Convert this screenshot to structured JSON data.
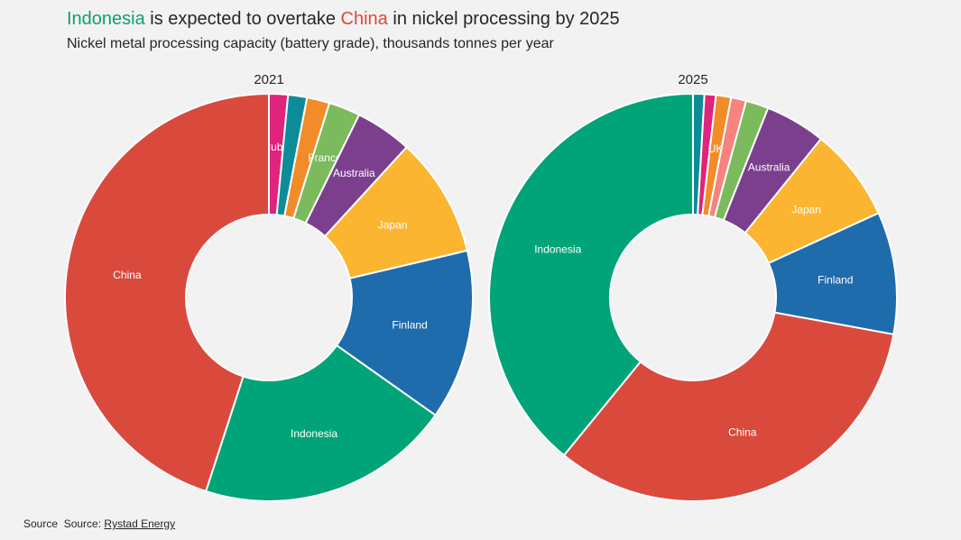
{
  "title": {
    "highlight1": "Indonesia",
    "part2": " is expected to overtake ",
    "highlight2": "China",
    "part3": " in nickel processing by 2025"
  },
  "subtitle": "Nickel metal processing capacity (battery grade), thousands tonnes per year",
  "source": {
    "prefix": "Source",
    "text": "Source: ",
    "link": "Rystad Energy"
  },
  "colors": {
    "china": "#d94a3d",
    "indonesia": "#00a478",
    "finland": "#1f6cad",
    "japan": "#fbb531",
    "australia": "#7b3f8e",
    "france": "#7bbb5d",
    "orange": "#f28c28",
    "teal": "#0c8c99",
    "magenta": "#e0237c",
    "pink": "#f7837f",
    "uk": "#f28c28"
  },
  "chart_data": [
    {
      "type": "pie",
      "title": "2021",
      "series": [
        {
          "label": "Cuba",
          "value": 1.5,
          "color": "#e0237c"
        },
        {
          "label": "",
          "value": 1.5,
          "color": "#0c8c99"
        },
        {
          "label": "",
          "value": 1.8,
          "color": "#f28c28"
        },
        {
          "label": "France",
          "value": 2.5,
          "color": "#7bbb5d"
        },
        {
          "label": "Australia",
          "value": 4.5,
          "color": "#7b3f8e"
        },
        {
          "label": "Japan",
          "value": 9.5,
          "color": "#fbb531"
        },
        {
          "label": "Finland",
          "value": 13.5,
          "color": "#1f6cad"
        },
        {
          "label": "Indonesia",
          "value": 20.2,
          "color": "#00a478"
        },
        {
          "label": "China",
          "value": 45.0,
          "color": "#d94a3d"
        }
      ]
    },
    {
      "type": "pie",
      "title": "2025",
      "series": [
        {
          "label": "",
          "value": 0.9,
          "color": "#0c8c99"
        },
        {
          "label": "",
          "value": 0.9,
          "color": "#e0237c"
        },
        {
          "label": "UK",
          "value": 1.2,
          "color": "#f28c28"
        },
        {
          "label": "",
          "value": 1.2,
          "color": "#f7837f"
        },
        {
          "label": "",
          "value": 1.8,
          "color": "#7bbb5d"
        },
        {
          "label": "Australia",
          "value": 4.8,
          "color": "#7b3f8e"
        },
        {
          "label": "Japan",
          "value": 7.4,
          "color": "#fbb531"
        },
        {
          "label": "Finland",
          "value": 9.7,
          "color": "#1f6cad"
        },
        {
          "label": "China",
          "value": 33.0,
          "color": "#d94a3d"
        },
        {
          "label": "Indonesia",
          "value": 39.1,
          "color": "#00a478"
        }
      ]
    }
  ]
}
